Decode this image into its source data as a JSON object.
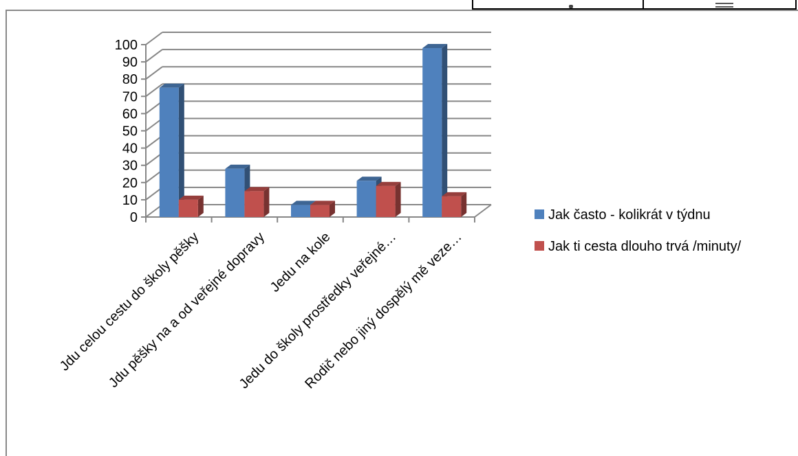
{
  "chart_data": {
    "type": "bar",
    "style": "3d-clustered-column",
    "categories": [
      "Jdu celou cestu do školy pěšky",
      "Jdu pěšky na a od veřejné dopravy",
      "Jedu na kole",
      "Jedu do školy prostředky veřejné…",
      "Rodič nebo jiný dospělý mě veze…"
    ],
    "series": [
      {
        "name": "Jak často - kolikrát v týdnu",
        "values": [
          75,
          28,
          7,
          21,
          98
        ],
        "color": "#4F81BD"
      },
      {
        "name": "Jak ti cesta dlouho trvá /minuty/",
        "values": [
          10,
          15,
          7,
          18,
          12
        ],
        "color": "#C0504D"
      }
    ],
    "y_ticks": [
      "0",
      "10",
      "20",
      "30",
      "40",
      "50",
      "60",
      "70",
      "80",
      "90",
      "100"
    ],
    "ylim": [
      0,
      100
    ],
    "title": "",
    "xlabel": "",
    "ylabel": "",
    "grid": true,
    "legend_position": "right"
  },
  "page_header": {
    "table_visible": true
  }
}
